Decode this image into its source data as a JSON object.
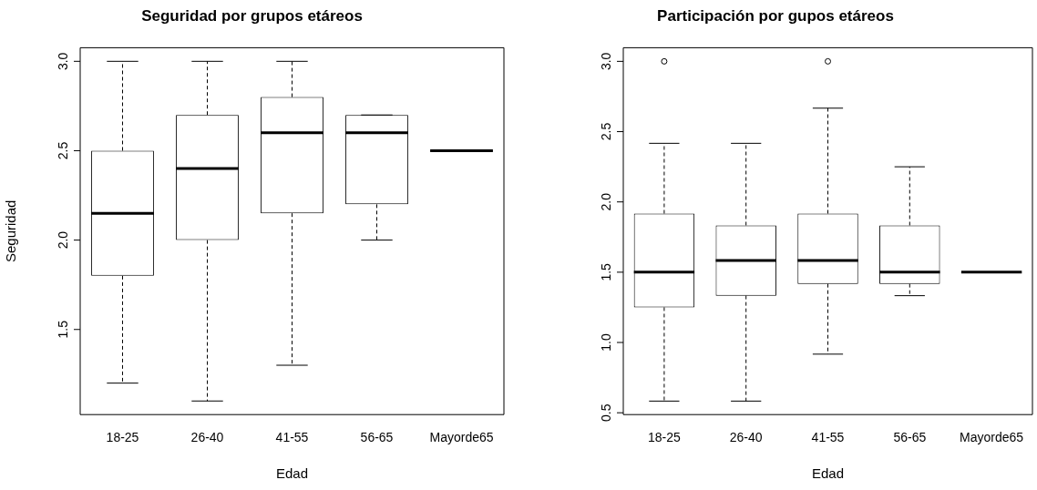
{
  "chart_data": [
    {
      "type": "box",
      "title": "Seguridad por grupos etáreos",
      "xlabel": "Edad",
      "ylabel": "Seguridad",
      "categories": [
        "18-25",
        "26-40",
        "41-55",
        "56-65",
        "Mayorde65"
      ],
      "boxes": [
        {
          "low": 1.2,
          "q1": 1.8,
          "median": 2.15,
          "q3": 2.5,
          "high": 3.0
        },
        {
          "low": 1.1,
          "q1": 2.0,
          "median": 2.4,
          "q3": 2.7,
          "high": 3.0
        },
        {
          "low": 1.3,
          "q1": 2.15,
          "median": 2.6,
          "q3": 2.8,
          "high": 3.0
        },
        {
          "low": 2.0,
          "q1": 2.2,
          "median": 2.6,
          "q3": 2.7,
          "high": 2.7
        },
        {
          "low": 2.5,
          "q1": 2.5,
          "median": 2.5,
          "q3": 2.5,
          "high": 2.5
        }
      ],
      "ylim": [
        1.024,
        3.076
      ],
      "yticks": [
        {
          "value": 1.5,
          "label": "1.5"
        },
        {
          "value": 2,
          "label": "2.0"
        },
        {
          "value": 2.5,
          "label": "2.5"
        },
        {
          "value": 3,
          "label": "3.0"
        }
      ],
      "grid": false
    },
    {
      "type": "box",
      "title": "Participación por gupos etáreos",
      "xlabel": "Edad",
      "categories": [
        "18-25",
        "26-40",
        "41-55",
        "56-65",
        "Mayorde65"
      ],
      "boxes": [
        {
          "low": 0.583,
          "q1": 1.25,
          "median": 1.5,
          "q3": 1.917,
          "high": 2.417,
          "outliers": [
            3.0
          ]
        },
        {
          "low": 0.583,
          "q1": 1.333,
          "median": 1.583,
          "q3": 1.833,
          "high": 2.417
        },
        {
          "low": 0.917,
          "q1": 1.417,
          "median": 1.583,
          "q3": 1.917,
          "high": 2.667,
          "outliers": [
            3.0
          ]
        },
        {
          "low": 1.333,
          "q1": 1.417,
          "median": 1.5,
          "q3": 1.833,
          "high": 2.25
        },
        {
          "low": 1.5,
          "q1": 1.5,
          "median": 1.5,
          "q3": 1.5,
          "high": 1.5
        }
      ],
      "ylim": [
        0.487,
        3.097
      ],
      "yticks": [
        {
          "value": 0.5,
          "label": "0.5"
        },
        {
          "value": 1,
          "label": "1.0"
        },
        {
          "value": 1.5,
          "label": "1.5"
        },
        {
          "value": 2,
          "label": "2.0"
        },
        {
          "value": 2.5,
          "label": "2.5"
        },
        {
          "value": 3,
          "label": "3.0"
        }
      ],
      "grid": false
    }
  ]
}
